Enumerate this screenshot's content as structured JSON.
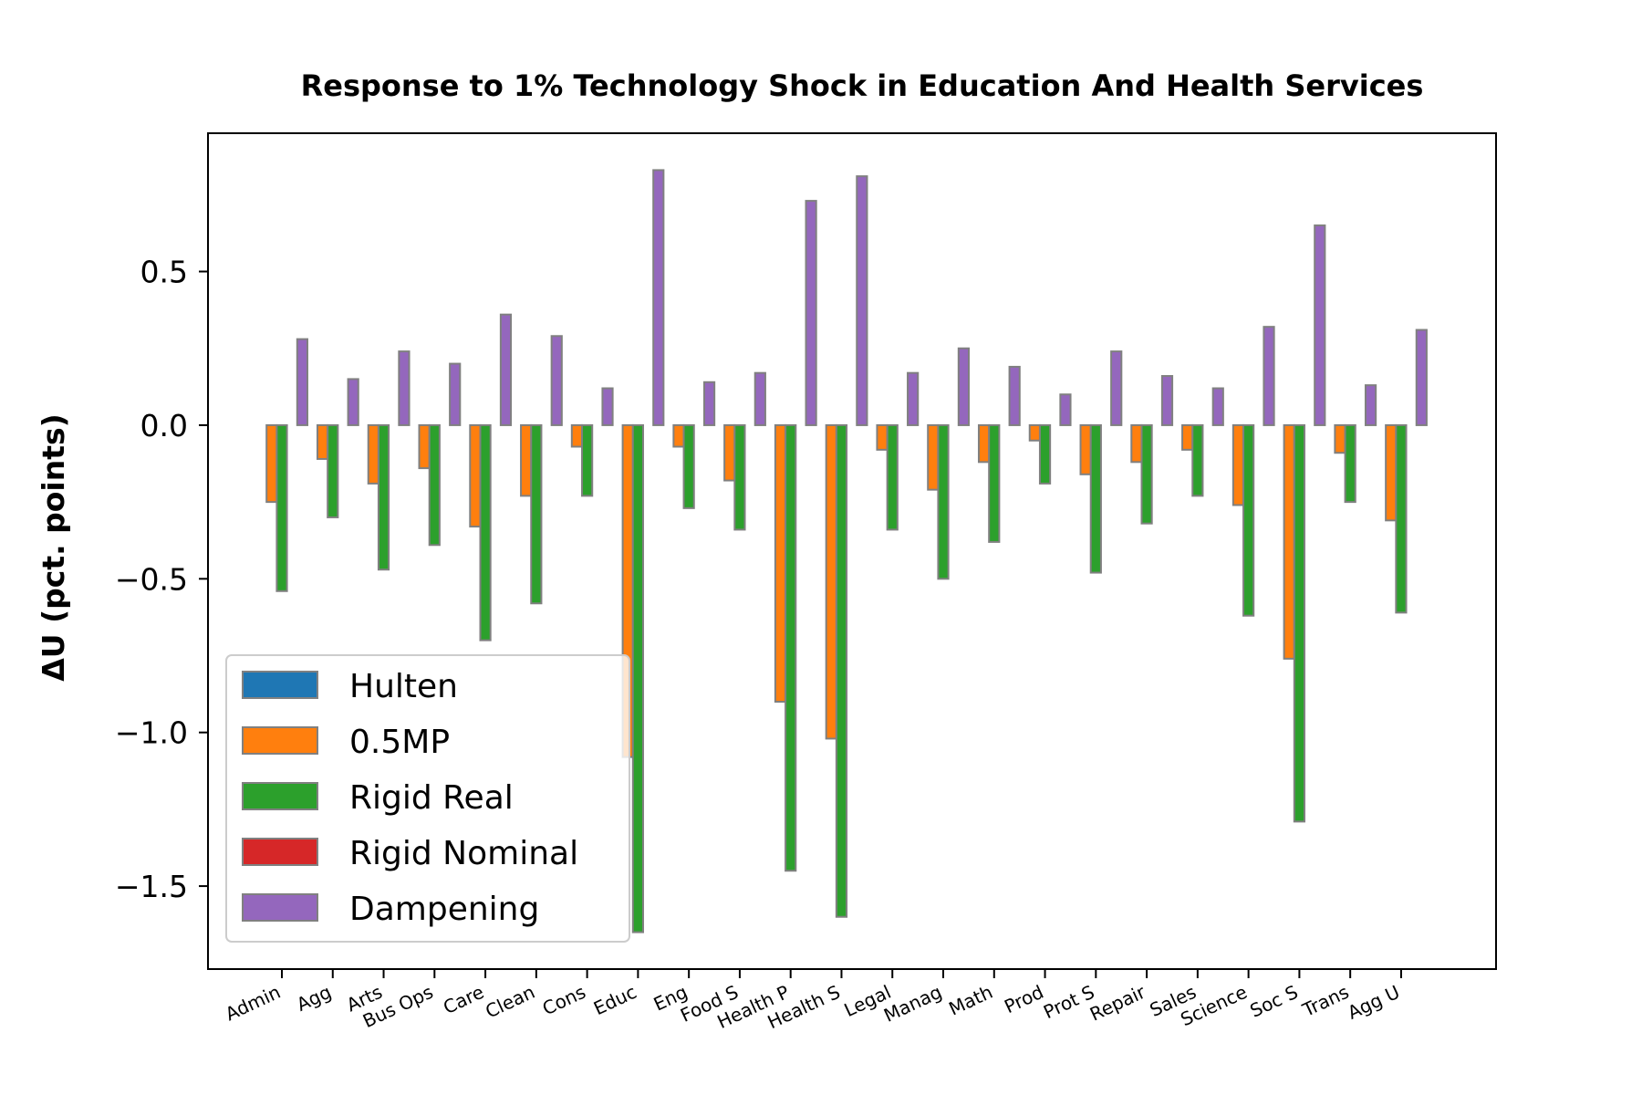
{
  "chart_data": {
    "type": "bar",
    "title": "Response to 1% Technology Shock in Education And Health Services",
    "xlabel": "",
    "ylabel": "ΔU  (pct. points)",
    "ylim": [
      -1.77,
      0.95
    ],
    "yticks": [
      0.5,
      0.0,
      -0.5,
      -1.0,
      -1.5
    ],
    "ytick_labels": [
      "0.5",
      "0.0",
      "−0.5",
      "−1.0",
      "−1.5"
    ],
    "grid": false,
    "legend_position": "lower-left",
    "categories": [
      "Admin",
      "Agg",
      "Arts",
      "Bus Ops",
      "Care",
      "Clean",
      "Cons",
      "Educ",
      "Eng",
      "Food S",
      "Health P",
      "Health S",
      "Legal",
      "Manag",
      "Math",
      "Prod",
      "Prot S",
      "Repair",
      "Sales",
      "Science",
      "Soc S",
      "Trans",
      "Agg U"
    ],
    "series": [
      {
        "name": "Hulten",
        "color": "#1f77b4",
        "values": [
          0,
          0,
          0,
          0,
          0,
          0,
          0,
          0,
          0,
          0,
          0,
          0,
          0,
          0,
          0,
          0,
          0,
          0,
          0,
          0,
          0,
          0,
          0
        ]
      },
      {
        "name": "0.5MP",
        "color": "#ff7f0e",
        "values": [
          -0.25,
          -0.11,
          -0.19,
          -0.14,
          -0.33,
          -0.23,
          -0.07,
          -1.08,
          -0.07,
          -0.18,
          -0.9,
          -1.02,
          -0.08,
          -0.21,
          -0.12,
          -0.05,
          -0.16,
          -0.12,
          -0.08,
          -0.26,
          -0.76,
          -0.09,
          -0.31
        ]
      },
      {
        "name": "Rigid Real",
        "color": "#2ca02c",
        "values": [
          -0.54,
          -0.3,
          -0.47,
          -0.39,
          -0.7,
          -0.58,
          -0.23,
          -1.65,
          -0.27,
          -0.34,
          -1.45,
          -1.6,
          -0.34,
          -0.5,
          -0.38,
          -0.19,
          -0.48,
          -0.32,
          -0.23,
          -0.62,
          -1.29,
          -0.25,
          -0.61
        ]
      },
      {
        "name": "Rigid Nominal",
        "color": "#d62728",
        "values": [
          0,
          0,
          0,
          0,
          0,
          0,
          0,
          0,
          0,
          0,
          0,
          0,
          0,
          0,
          0,
          0,
          0,
          0,
          0,
          0,
          0,
          0,
          0
        ]
      },
      {
        "name": "Dampening",
        "color": "#9467bd",
        "values": [
          0.28,
          0.15,
          0.24,
          0.2,
          0.36,
          0.29,
          0.12,
          0.83,
          0.14,
          0.17,
          0.73,
          0.81,
          0.17,
          0.25,
          0.19,
          0.1,
          0.24,
          0.16,
          0.12,
          0.32,
          0.65,
          0.13,
          0.31
        ]
      }
    ]
  }
}
